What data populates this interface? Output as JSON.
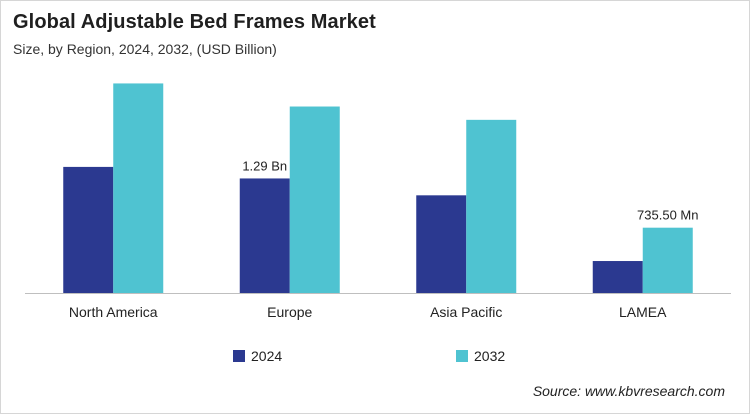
{
  "header": {
    "title": "Global Adjustable Bed Frames Market",
    "subtitle": "Size, by Region, 2024, 2032, (USD Billion)"
  },
  "footer": {
    "source": "Source: www.kbvresearch.com"
  },
  "colors": {
    "series_2024": "#2b3990",
    "series_2032": "#4fc3d1",
    "axis": "#bfbfbf"
  },
  "chart_data": {
    "type": "bar",
    "title": "Global Adjustable Bed Frames Market",
    "subtitle": "Size, by Region, 2024, 2032, (USD Billion)",
    "categories": [
      "North America",
      "Europe",
      "Asia Pacific",
      "LAMEA"
    ],
    "series": [
      {
        "name": "2024",
        "values": [
          1.42,
          1.29,
          1.1,
          0.36
        ]
      },
      {
        "name": "2032",
        "values": [
          2.36,
          2.1,
          1.95,
          0.7355
        ]
      }
    ],
    "annotations": [
      {
        "series": "2024",
        "category": "Europe",
        "text": "1.29 Bn"
      },
      {
        "series": "2032",
        "category": "LAMEA",
        "text": "735.50 Mn"
      }
    ],
    "ylim": [
      0,
      2.5
    ],
    "grid": false,
    "legend": "bottom-center"
  }
}
